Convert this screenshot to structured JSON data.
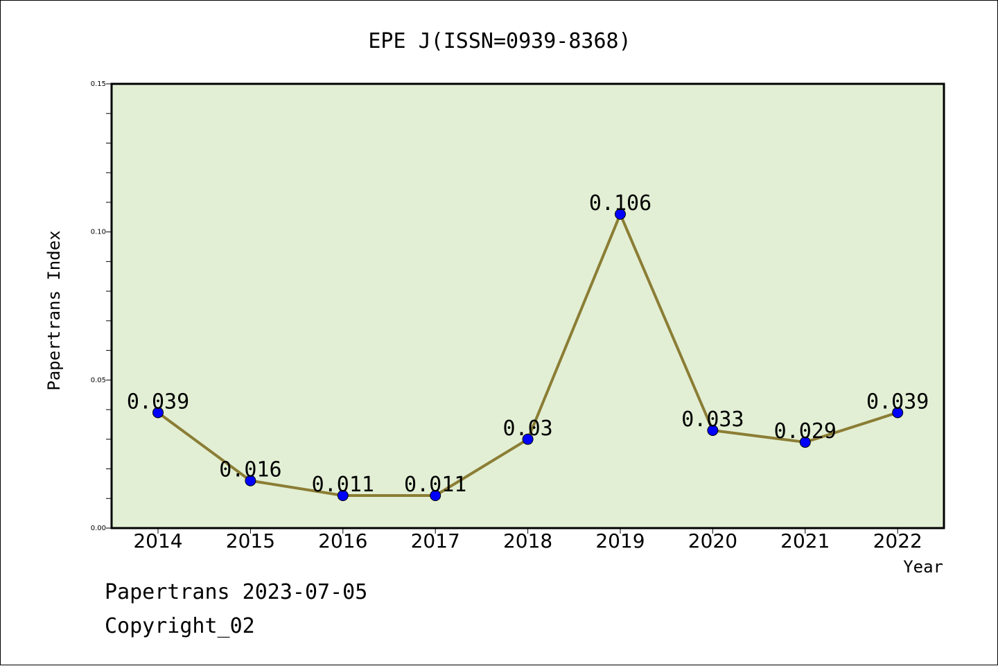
{
  "chart_data": {
    "type": "line",
    "title": "EPE J(ISSN=0939-8368)",
    "xlabel": "Year",
    "ylabel": "Papertrans Index",
    "categories": [
      "2014",
      "2015",
      "2016",
      "2017",
      "2018",
      "2019",
      "2020",
      "2021",
      "2022"
    ],
    "series": [
      {
        "values": [
          0.039,
          0.016,
          0.011,
          0.011,
          0.03,
          0.106,
          0.033,
          0.029,
          0.039
        ],
        "data_labels": [
          "0.039",
          "0.016",
          "0.011",
          "0.011",
          "0.03",
          "0.106",
          "0.033",
          "0.029",
          "0.039"
        ]
      }
    ],
    "ylim": [
      0,
      0.15
    ],
    "yticks": [
      "0.00",
      "0.05",
      "0.10",
      "0.15"
    ],
    "grid": false,
    "colors": {
      "plot_background": "#e2efd4",
      "line": "#8b7d35",
      "marker": "#0000ff"
    }
  },
  "footer": {
    "date_line": "Papertrans 2023-07-05",
    "copyright_line": "Copyright_02"
  }
}
